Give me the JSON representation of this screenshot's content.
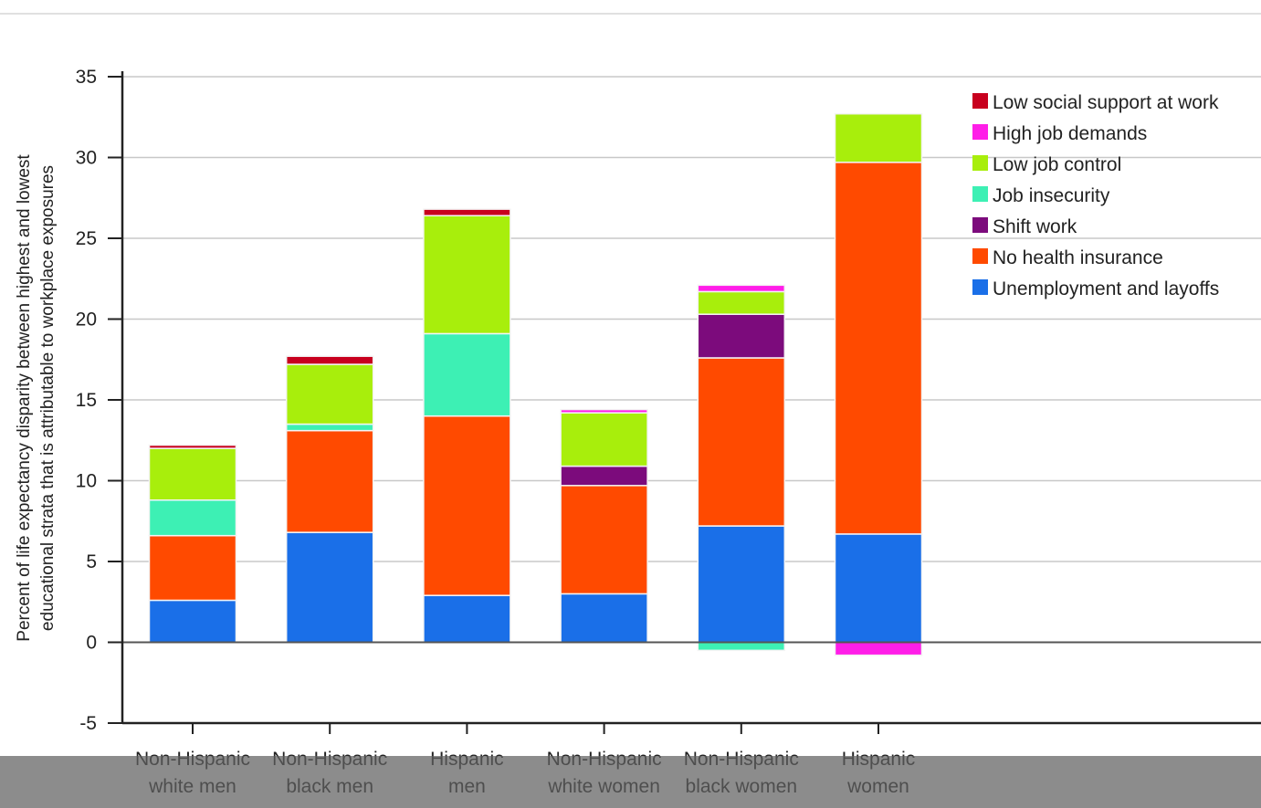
{
  "chart_data": {
    "type": "bar",
    "stacked": true,
    "categories": [
      [
        "Non-Hispanic",
        "white men"
      ],
      [
        "Non-Hispanic",
        "black men"
      ],
      [
        "Hispanic",
        "men"
      ],
      [
        "Non-Hispanic",
        "white women"
      ],
      [
        "Non-Hispanic",
        "black women"
      ],
      [
        "Hispanic",
        "women"
      ]
    ],
    "ylabel": [
      "Percent of life expectancy disparity between highest and lowest",
      "educational strata that is attributable to workplace exposures"
    ],
    "ylim": [
      -5,
      35
    ],
    "yticks": [
      -5,
      0,
      5,
      10,
      15,
      20,
      25,
      30,
      35
    ],
    "grid": true,
    "legend_position": "top-right",
    "series": [
      {
        "name": "Unemployment and layoffs",
        "color": "#1a6fe8",
        "values": [
          2.6,
          6.8,
          2.9,
          3.0,
          7.2,
          6.7
        ]
      },
      {
        "name": "No health insurance",
        "color": "#ff4a00",
        "values": [
          4.0,
          6.3,
          11.1,
          6.7,
          10.4,
          23.0
        ]
      },
      {
        "name": "Shift work",
        "color": "#7c0b7c",
        "values": [
          0.0,
          0.0,
          0.0,
          1.2,
          2.7,
          0.0
        ]
      },
      {
        "name": "Job insecurity",
        "color": "#3df0b4",
        "values": [
          2.2,
          0.4,
          5.1,
          0.0,
          -0.5,
          0.0
        ]
      },
      {
        "name": "Low job control",
        "color": "#a8ee0c",
        "values": [
          3.2,
          3.7,
          7.3,
          3.3,
          1.4,
          3.0
        ]
      },
      {
        "name": "High job demands",
        "color": "#ff1ee8",
        "values": [
          0.0,
          0.0,
          0.0,
          0.2,
          0.4,
          -0.8
        ]
      },
      {
        "name": "Low social support at work",
        "color": "#c8001e",
        "values": [
          0.2,
          0.5,
          0.4,
          0.0,
          0.0,
          0.0
        ]
      }
    ],
    "legend_order": [
      "Low social support at work",
      "High job demands",
      "Low job control",
      "Job insecurity",
      "Shift work",
      "No health insurance",
      "Unemployment and layoffs"
    ]
  }
}
